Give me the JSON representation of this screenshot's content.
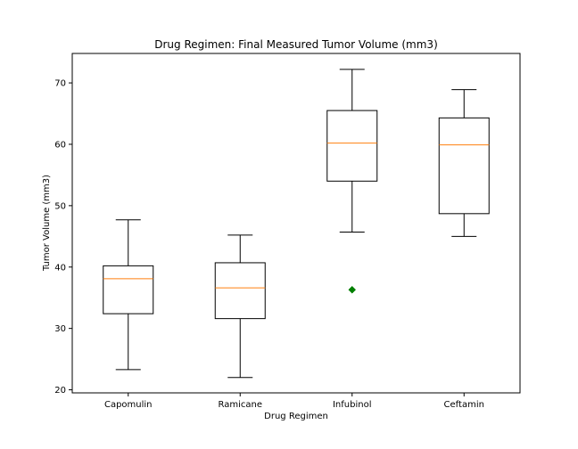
{
  "chart_data": {
    "type": "box",
    "title": "Drug Regimen: Final Measured Tumor Volume (mm3)",
    "xlabel": "Drug Regimen",
    "ylabel": "Tumor Volume (mm3)",
    "ylim": [
      19.5,
      74.8
    ],
    "yticks": [
      20,
      30,
      40,
      50,
      60,
      70
    ],
    "grid": false,
    "categories": [
      "Capomulin",
      "Ramicane",
      "Infubinol",
      "Ceftamin"
    ],
    "boxes": [
      {
        "name": "Capomulin",
        "whisker_low": 23.3,
        "q1": 32.4,
        "median": 38.1,
        "q3": 40.2,
        "whisker_high": 47.7,
        "outliers": []
      },
      {
        "name": "Ramicane",
        "whisker_low": 22.0,
        "q1": 31.6,
        "median": 36.6,
        "q3": 40.7,
        "whisker_high": 45.2,
        "outliers": []
      },
      {
        "name": "Infubinol",
        "whisker_low": 45.7,
        "q1": 54.0,
        "median": 60.2,
        "q3": 65.5,
        "whisker_high": 72.2,
        "outliers": [
          36.3
        ]
      },
      {
        "name": "Ceftamin",
        "whisker_low": 45.0,
        "q1": 48.7,
        "median": 59.9,
        "q3": 64.3,
        "whisker_high": 68.9,
        "outliers": []
      }
    ],
    "colors": {
      "box": "#000000",
      "median": "#ff7f0e",
      "outlier": "#008000"
    }
  }
}
